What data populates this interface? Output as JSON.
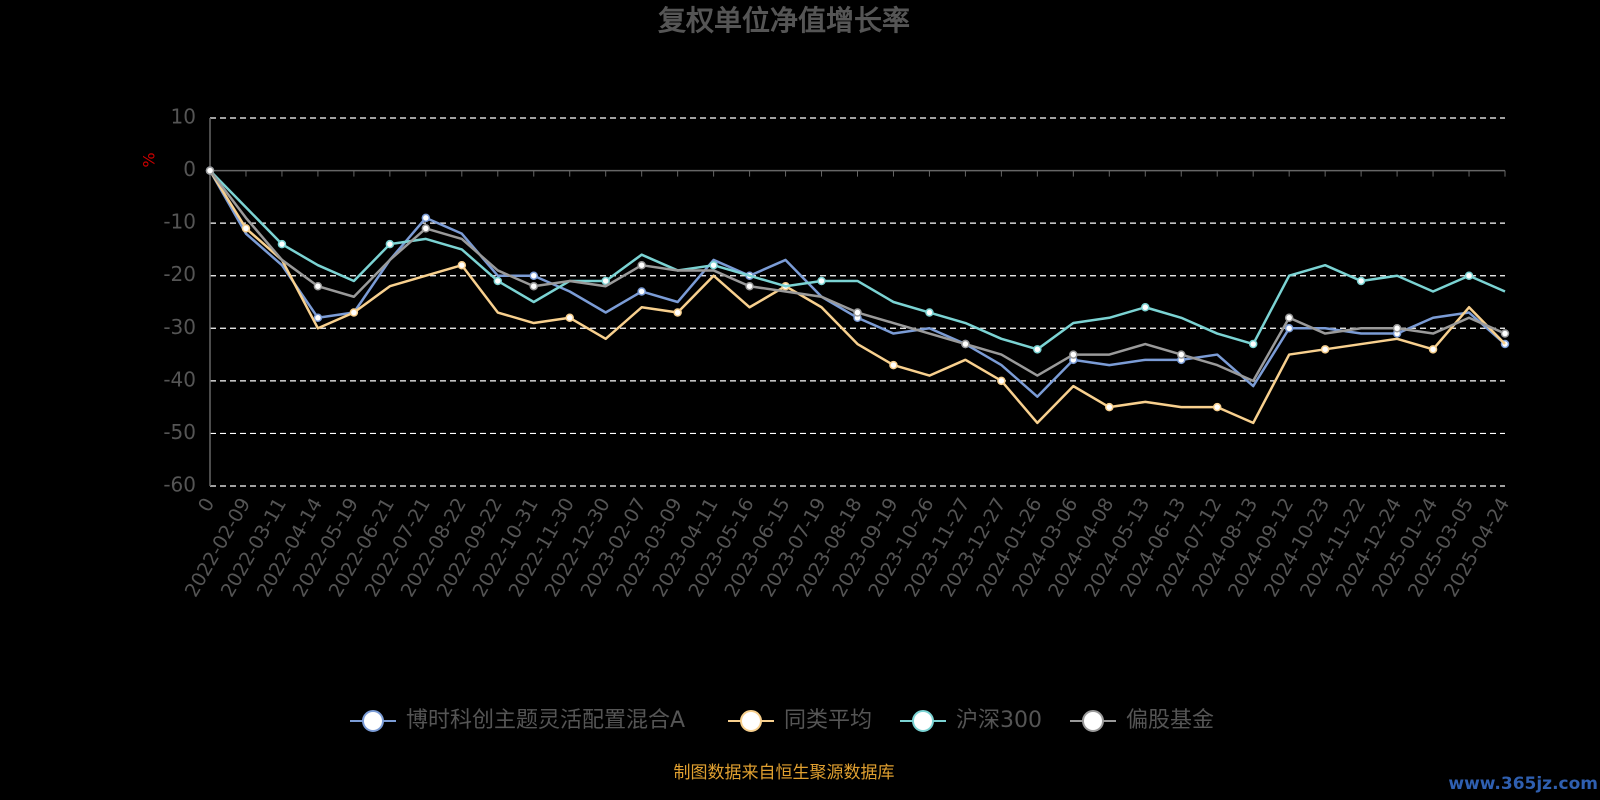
{
  "chart_data": {
    "type": "line",
    "title": "复权单位净值增长率",
    "y_label": "%",
    "source": "制图数据来自恒生聚源数据库",
    "watermark": "www.365jz.com",
    "categories": [
      "0",
      "2022-02-09",
      "2022-03-11",
      "2022-04-14",
      "2022-05-19",
      "2022-06-21",
      "2022-07-21",
      "2022-08-22",
      "2022-09-22",
      "2022-10-31",
      "2022-11-30",
      "2022-12-30",
      "2023-02-07",
      "2023-03-09",
      "2023-04-11",
      "2023-05-16",
      "2023-06-15",
      "2023-07-19",
      "2023-08-18",
      "2023-09-19",
      "2023-10-26",
      "2023-11-27",
      "2023-12-27",
      "2024-01-26",
      "2024-03-06",
      "2024-04-08",
      "2024-05-13",
      "2024-06-13",
      "2024-07-12",
      "2024-08-13",
      "2024-09-12",
      "2024-10-23",
      "2024-11-22",
      "2024-12-24",
      "2025-01-24",
      "2025-03-05",
      "2025-04-24"
    ],
    "series": [
      {
        "name": "博时科创主题灵活配置混合A",
        "color": "#7b9cd6",
        "values": [
          0,
          -12,
          -18,
          -28,
          -27,
          -17,
          -9,
          -12,
          -20,
          -20,
          -23,
          -27,
          -23,
          -25,
          -17,
          -20,
          -17,
          -24,
          -28,
          -31,
          -30,
          -33,
          -37,
          -43,
          -36,
          -37,
          -36,
          -36,
          -35,
          -41,
          -30,
          -30,
          -31,
          -31,
          -28,
          -27,
          -33
        ]
      },
      {
        "name": "同类平均",
        "color": "#f8d08e",
        "values": [
          0,
          -11,
          -17,
          -30,
          -27,
          -22,
          -20,
          -18,
          -27,
          -29,
          -28,
          -32,
          -26,
          -27,
          -20,
          -26,
          -22,
          -26,
          -33,
          -37,
          -39,
          -36,
          -40,
          -48,
          -41,
          -45,
          -44,
          -45,
          -45,
          -48,
          -35,
          -34,
          -33,
          -32,
          -34,
          -26,
          -33
        ]
      },
      {
        "name": "沪深300",
        "color": "#7bd3d3",
        "values": [
          0,
          -7,
          -14,
          -18,
          -21,
          -14,
          -13,
          -15,
          -21,
          -25,
          -21,
          -21,
          -16,
          -19,
          -18,
          -20,
          -22,
          -21,
          -21,
          -25,
          -27,
          -29,
          -32,
          -34,
          -29,
          -28,
          -26,
          -28,
          -31,
          -33,
          -20,
          -18,
          -21,
          -20,
          -23,
          -20,
          -23
        ]
      },
      {
        "name": "偏股基金",
        "color": "#9a9a9a",
        "values": [
          0,
          -9,
          -17,
          -22,
          -24,
          -17,
          -11,
          -13,
          -19,
          -22,
          -21,
          -22,
          -18,
          -19,
          -19,
          -22,
          -23,
          -24,
          -27,
          -29,
          -31,
          -33,
          -35,
          -39,
          -35,
          -35,
          -33,
          -35,
          -37,
          -40,
          -28,
          -31,
          -30,
          -30,
          -31,
          -28,
          -31
        ]
      }
    ],
    "ylim": [
      -60,
      10
    ],
    "yticks": [
      10,
      0,
      -10,
      -20,
      -30,
      -40,
      -50,
      -60
    ],
    "grid": true
  }
}
